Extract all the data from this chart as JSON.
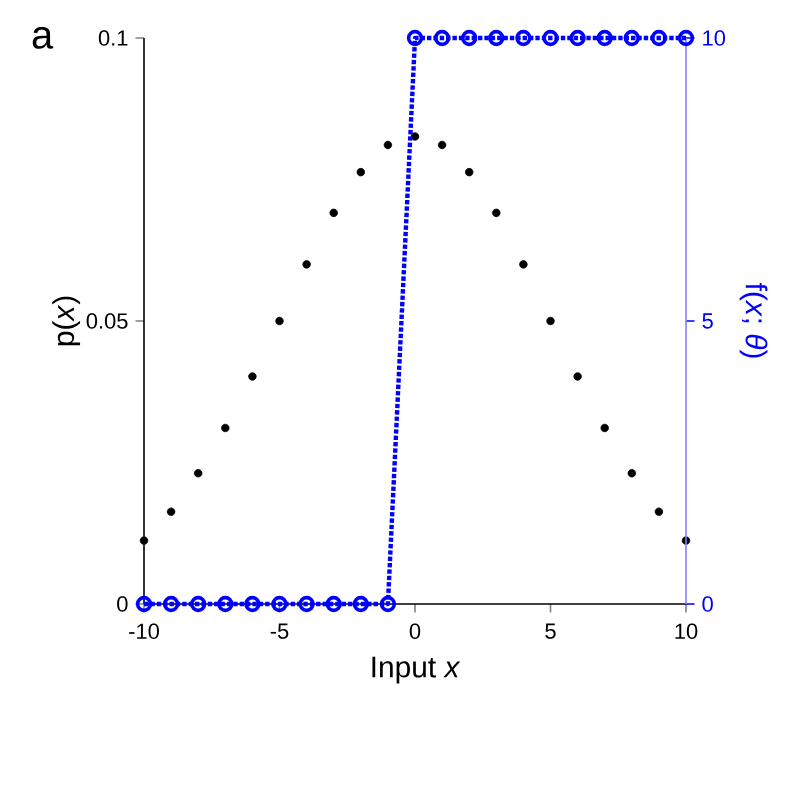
{
  "chart_data": {
    "type": "scatter",
    "xlabel": "Input *x*",
    "ylabel": "p(*x*)",
    "y2label": "f(*x*; *θ*)",
    "annotations": [
      "a"
    ],
    "x": [
      -10,
      -9,
      -8,
      -7,
      -6,
      -5,
      -4,
      -3,
      -2,
      -1,
      0,
      1,
      2,
      3,
      4,
      5,
      6,
      7,
      8,
      9,
      10
    ],
    "series": [
      {
        "color": "#000000",
        "marker": "circle",
        "values": [
          0.0112,
          0.0163,
          0.0231,
          0.0311,
          0.0402,
          0.05,
          0.06,
          0.0691,
          0.0763,
          0.0811,
          0.0826,
          0.0811,
          0.0763,
          0.0691,
          0.06,
          0.05,
          0.0402,
          0.0311,
          0.0231,
          0.0163,
          0.0112
        ]
      },
      {
        "type": "line",
        "color": "#0000ff",
        "marker": "circle",
        "line_style": "dotted",
        "axis": "y2",
        "values": [
          0,
          0,
          0,
          0,
          0,
          0,
          0,
          0,
          0,
          0,
          10,
          10,
          10,
          10,
          10,
          10,
          10,
          10,
          10,
          10,
          10
        ]
      }
    ],
    "xlim": [
      -10,
      10
    ],
    "xticks": [
      -10,
      -5,
      0,
      5,
      10
    ],
    "ylim": [
      0,
      0.1
    ],
    "yticks": [
      0,
      0.05,
      0.1
    ],
    "y2lim": [
      0,
      10
    ],
    "y2ticks": [
      0,
      5,
      10
    ]
  }
}
